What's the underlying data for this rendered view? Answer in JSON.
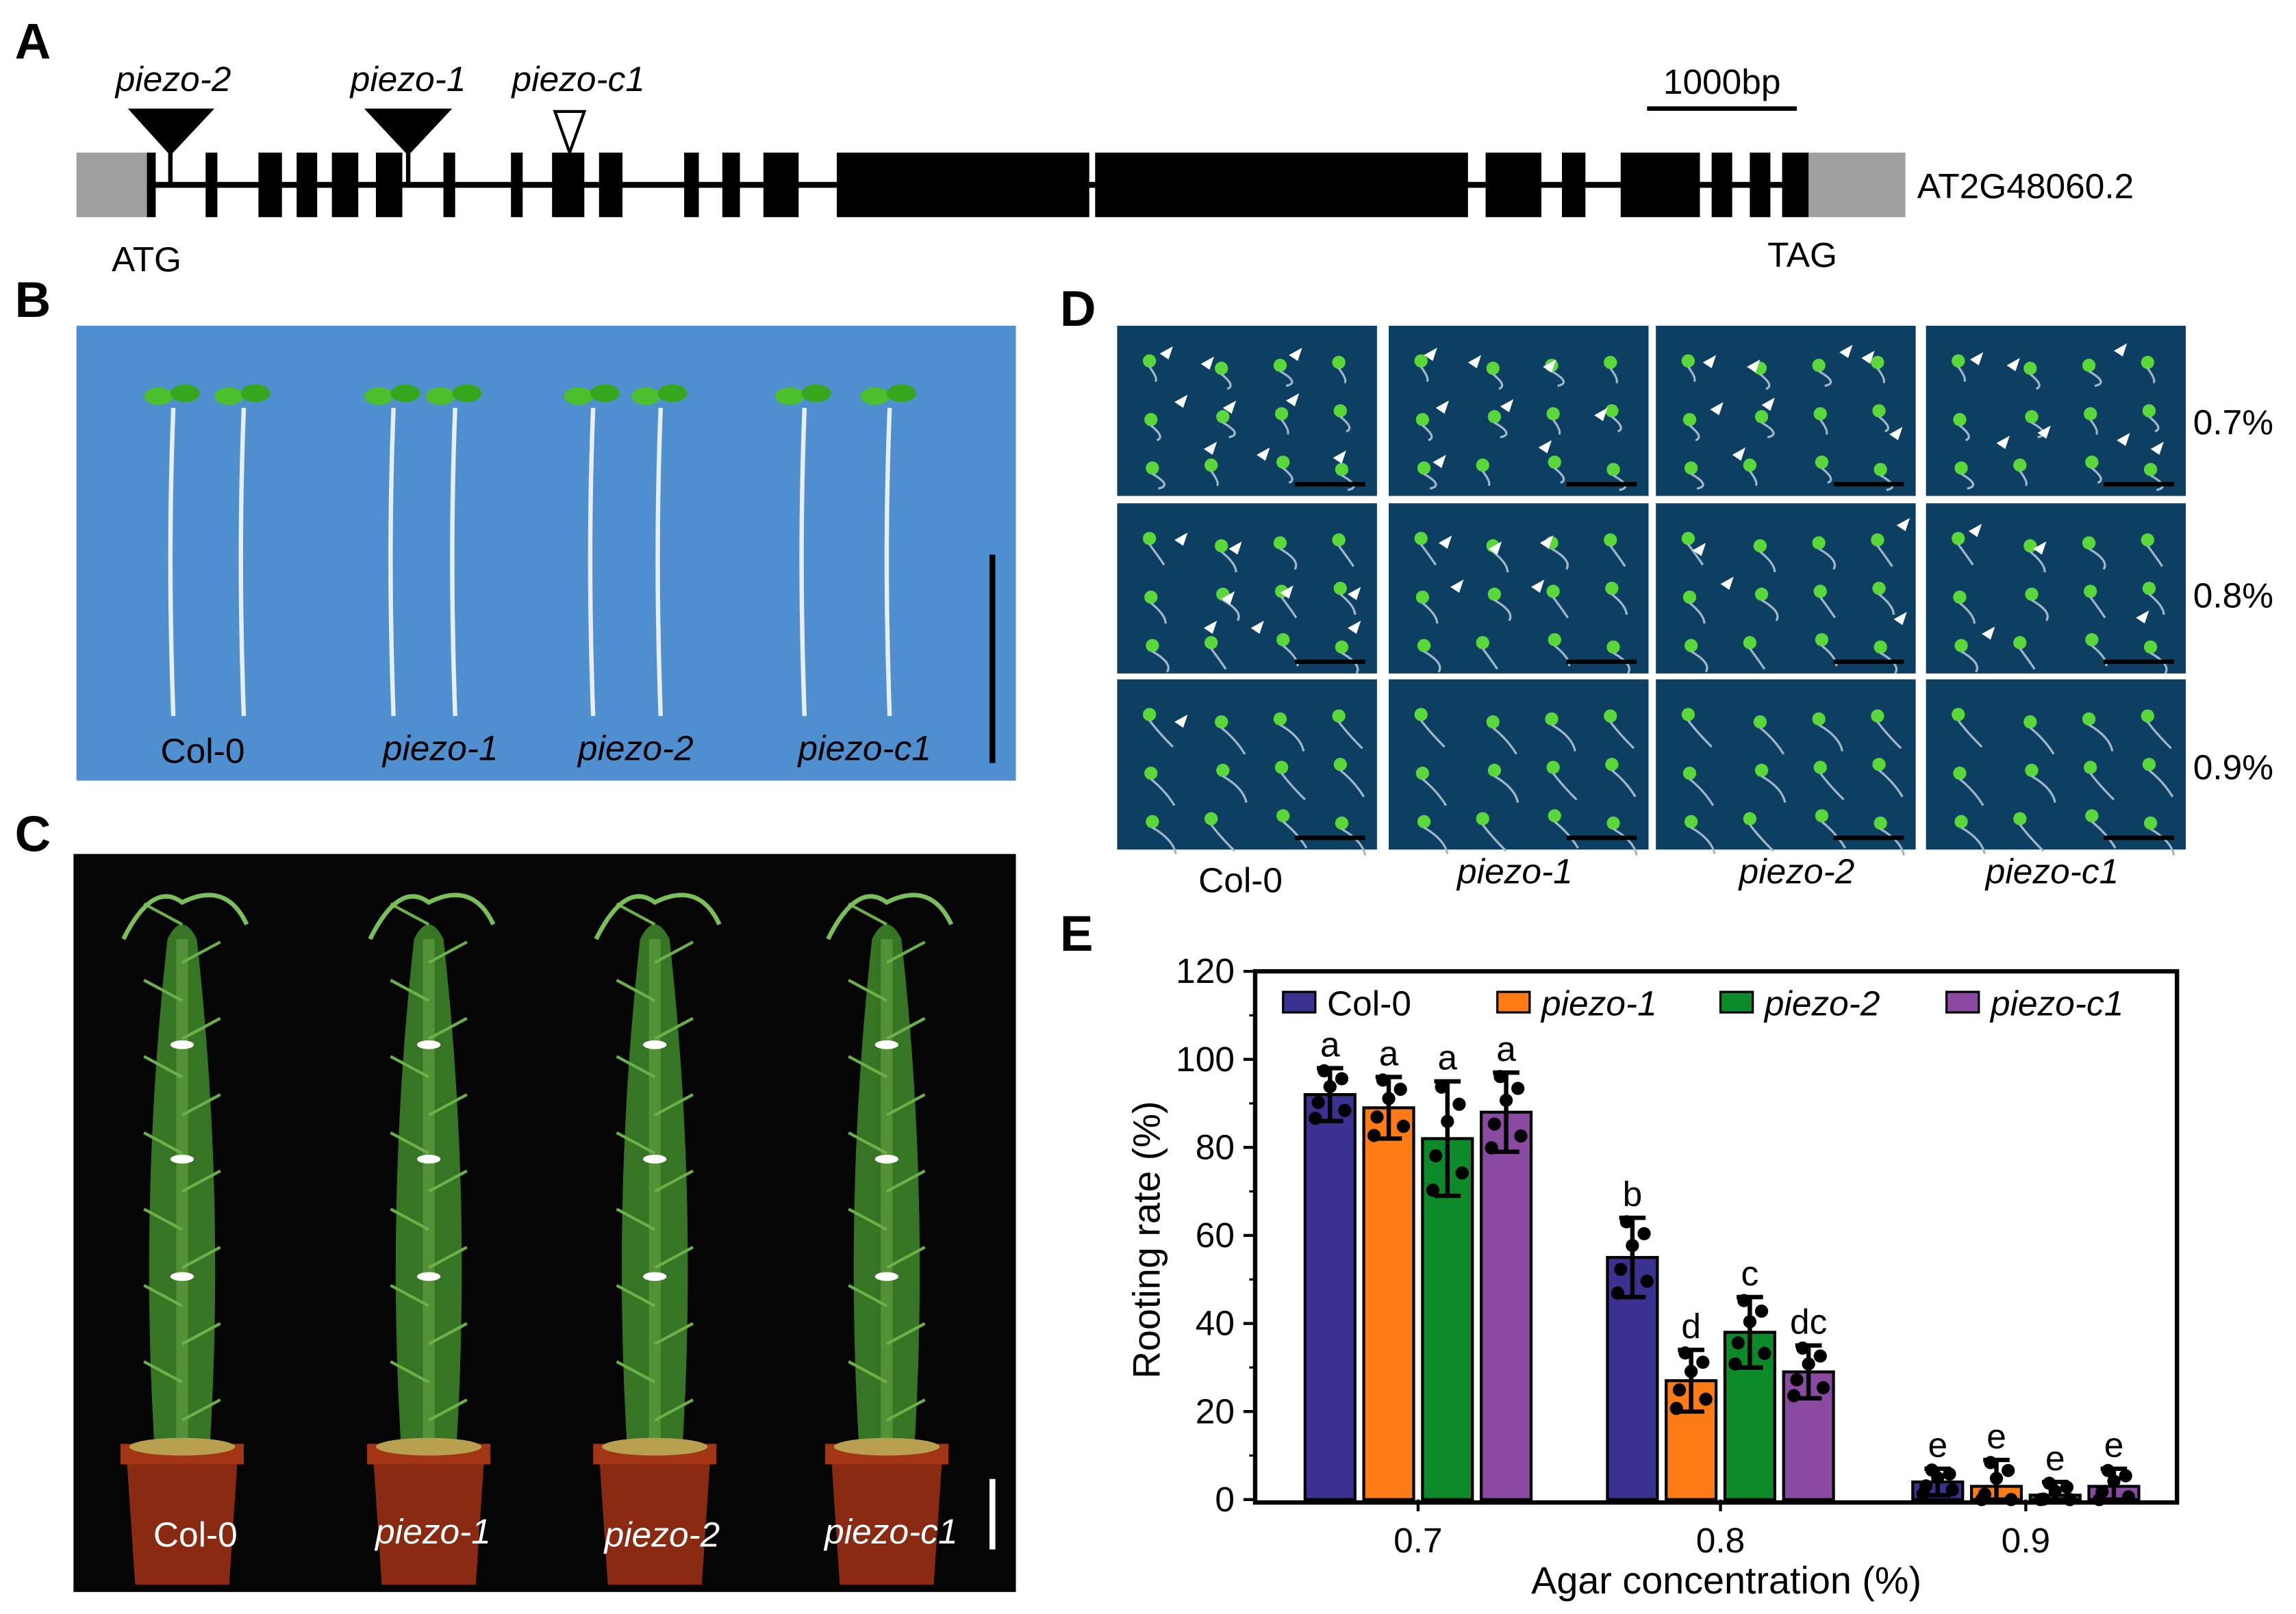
{
  "panels": {
    "A": {
      "letter": "A",
      "insertions": [
        {
          "name": "piezo-2",
          "style": "filled"
        },
        {
          "name": "piezo-1",
          "style": "filled"
        },
        {
          "name": "piezo-c1",
          "style": "open"
        }
      ],
      "scale_bar": "1000bp",
      "gene_id": "AT2G48060.2",
      "start_label": "ATG",
      "stop_label": "TAG"
    },
    "B": {
      "letter": "B",
      "background_color": "#4f8fcf",
      "genotypes": [
        "Col-0",
        "piezo-1",
        "piezo-2",
        "piezo-c1"
      ]
    },
    "C": {
      "letter": "C",
      "background_color": "#050505",
      "genotypes": [
        "Col-0",
        "piezo-1",
        "piezo-2",
        "piezo-c1"
      ]
    },
    "D": {
      "letter": "D",
      "background_color": "#0d3f63",
      "genotypes": [
        "Col-0",
        "piezo-1",
        "piezo-2",
        "piezo-c1"
      ],
      "concentrations": [
        "0.7%",
        "0.8%",
        "0.9%"
      ]
    },
    "E": {
      "letter": "E"
    }
  },
  "chart_data": {
    "type": "bar",
    "xlabel": "Agar concentration (%)",
    "ylabel": "Rooting rate (%)",
    "ylim": [
      0,
      120
    ],
    "yticks": [
      "0",
      "20",
      "40",
      "60",
      "80",
      "100",
      "120"
    ],
    "categories": [
      "0.7",
      "0.8",
      "0.9"
    ],
    "legend_position": "top",
    "series": [
      {
        "name": "Col-0",
        "color": "#3a3191",
        "values": [
          92,
          55,
          4
        ],
        "error": [
          6,
          9,
          3
        ],
        "letters": [
          "a",
          "b",
          "e"
        ]
      },
      {
        "name": "piezo-1",
        "color": "#ff7b16",
        "values": [
          89,
          27,
          3
        ],
        "error": [
          7,
          7,
          6
        ],
        "letters": [
          "a",
          "d",
          "e"
        ]
      },
      {
        "name": "piezo-2",
        "color": "#0c8a2a",
        "values": [
          82,
          38,
          1
        ],
        "error": [
          13,
          8,
          3
        ],
        "letters": [
          "a",
          "c",
          "e"
        ]
      },
      {
        "name": "piezo-c1",
        "color": "#8a4aa2",
        "values": [
          88,
          29,
          3
        ],
        "error": [
          9,
          6,
          4
        ],
        "letters": [
          "a",
          "dc",
          "e"
        ]
      }
    ]
  }
}
